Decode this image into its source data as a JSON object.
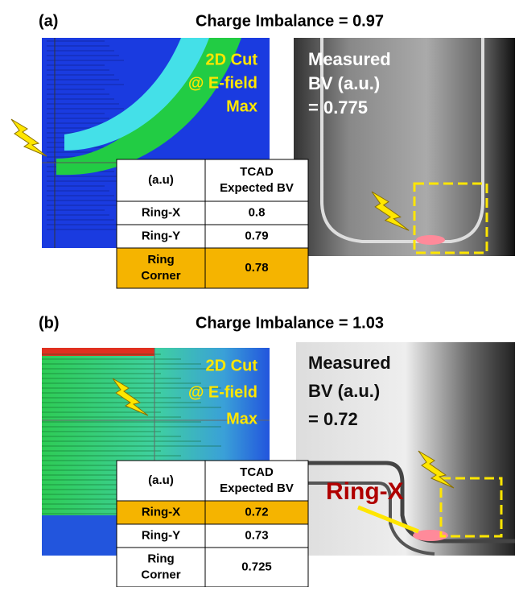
{
  "panels": [
    {
      "label": "(a)",
      "title": "Charge Imbalance = 0.97",
      "cut_text": [
        "2D Cut",
        "@ E-field",
        "Max"
      ],
      "measured_text": [
        "Measured",
        "BV (a.u.)",
        "= 0.775"
      ],
      "table": {
        "header": [
          [
            "(a.u)"
          ],
          [
            "TCAD",
            "Expected BV"
          ]
        ],
        "rows": [
          [
            [
              "Ring-X"
            ],
            [
              "0.8"
            ]
          ],
          [
            [
              "Ring-Y"
            ],
            [
              "0.79"
            ]
          ],
          [
            [
              "Ring",
              "Corner"
            ],
            [
              "0.78"
            ]
          ]
        ],
        "highlight_row": 2
      }
    },
    {
      "label": "(b)",
      "title": "Charge Imbalance = 1.03",
      "cut_text": [
        "2D Cut",
        "@ E-field",
        "Max"
      ],
      "measured_text": [
        "Measured",
        "BV (a.u.)",
        "= 0.72"
      ],
      "annotation": "Ring-X",
      "table": {
        "header": [
          [
            "(a.u)"
          ],
          [
            "TCAD",
            "Expected BV"
          ]
        ],
        "rows": [
          [
            [
              "Ring-X"
            ],
            [
              "0.72"
            ]
          ],
          [
            [
              "Ring-Y"
            ],
            [
              "0.73"
            ]
          ],
          [
            [
              "Ring",
              "Corner"
            ],
            [
              "0.725"
            ]
          ]
        ],
        "highlight_row": 0
      }
    }
  ]
}
